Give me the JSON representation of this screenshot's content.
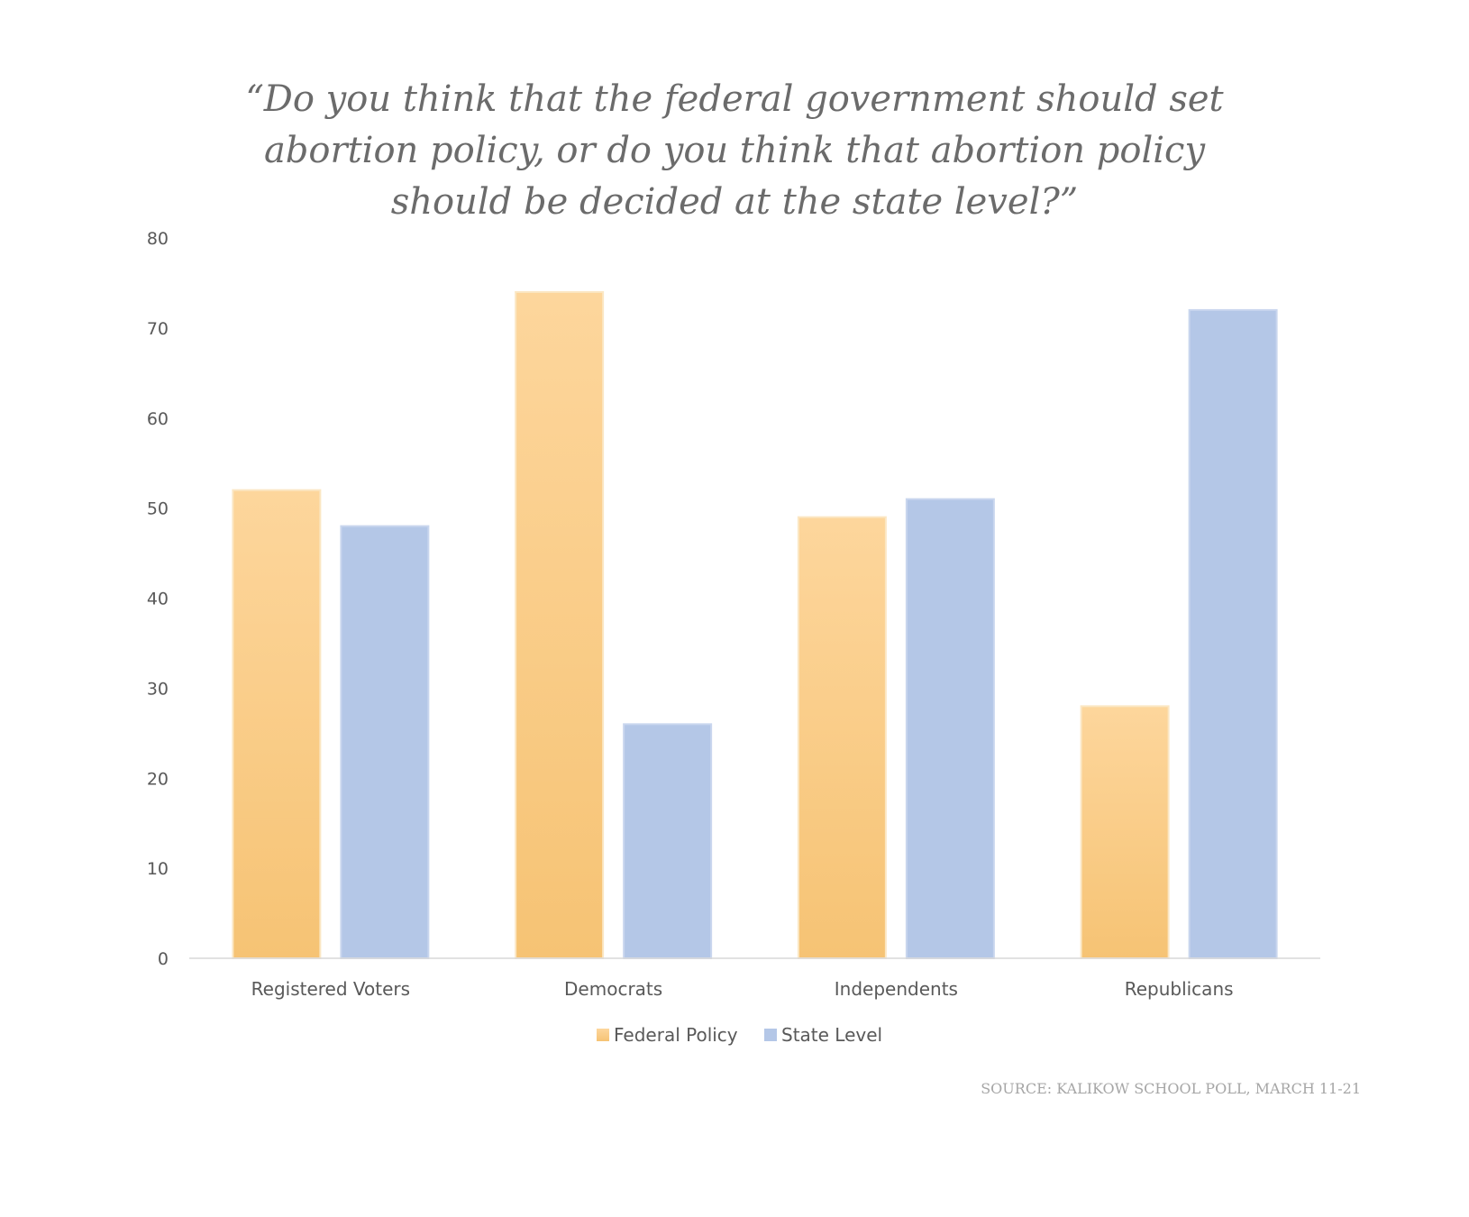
{
  "chart_data": {
    "type": "bar",
    "title": "“Do you think that the federal government should set abortion policy, or do you think that abortion policy should be decided at the state level?”",
    "categories": [
      "Registered Voters",
      "Democrats",
      "Independents",
      "Republicans"
    ],
    "series": [
      {
        "name": "Federal Policy",
        "values": [
          52,
          74,
          49,
          28
        ],
        "color": "#f8c77e"
      },
      {
        "name": "State Level",
        "values": [
          48,
          26,
          51,
          72
        ],
        "color": "#b4c7e7"
      }
    ],
    "ylim": [
      0,
      80
    ],
    "yticks": [
      "0",
      "10",
      "20",
      "30",
      "40",
      "50",
      "60",
      "70",
      "80"
    ],
    "xlabel": "",
    "ylabel": "",
    "legend_position": "bottom",
    "grid": false
  },
  "source": "SOURCE: KALIKOW SCHOOL POLL, MARCH 11-21"
}
